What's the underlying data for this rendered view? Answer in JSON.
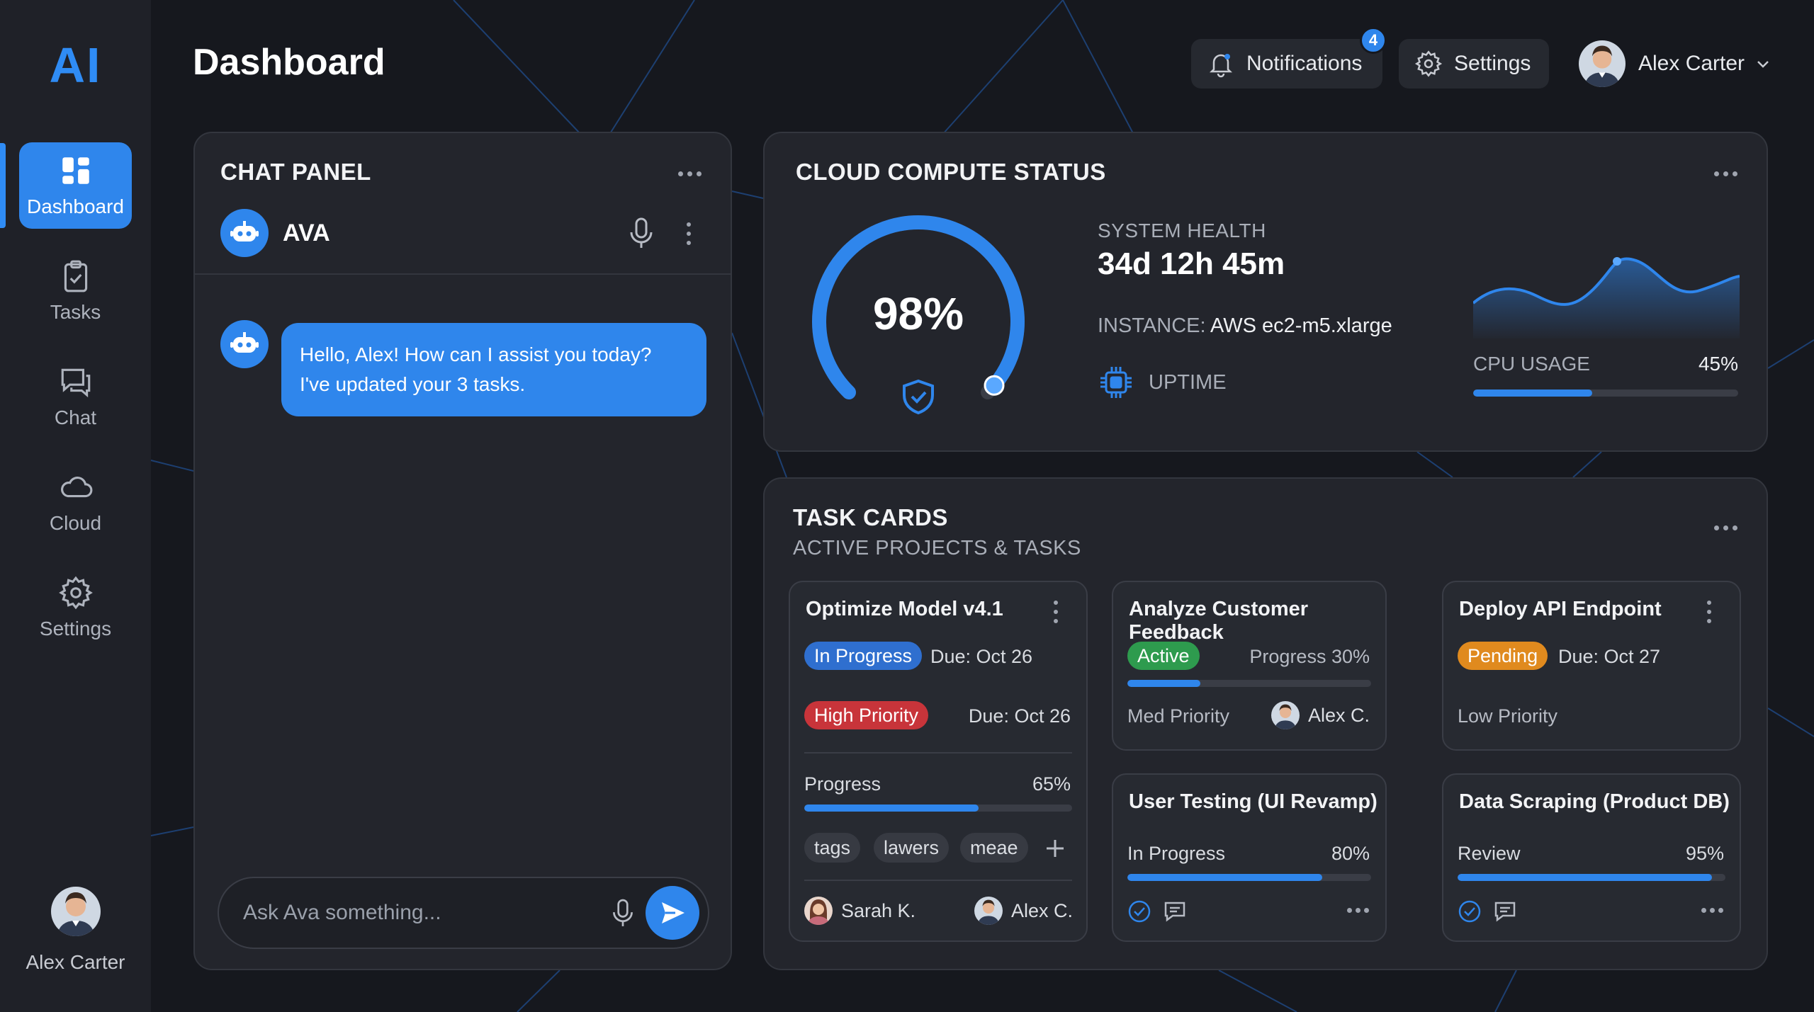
{
  "app": {
    "logo": "AI",
    "page_title": "Dashboard"
  },
  "sidebar": {
    "items": [
      {
        "label": "Dashboard",
        "icon": "dashboard-icon",
        "active": true
      },
      {
        "label": "Tasks",
        "icon": "clipboard-check-icon"
      },
      {
        "label": "Chat",
        "icon": "chat-icon"
      },
      {
        "label": "Cloud",
        "icon": "cloud-icon"
      },
      {
        "label": "Settings",
        "icon": "gear-icon"
      }
    ],
    "user_name": "Alex Carter"
  },
  "header": {
    "notifications_label": "Notifications",
    "notifications_count": "4",
    "settings_label": "Settings",
    "user_name": "Alex Carter"
  },
  "chat": {
    "title": "CHAT PANEL",
    "assistant_name": "AVA",
    "messages": [
      {
        "from": "assistant",
        "lines": [
          "Hello, Alex! How can I assist you today?",
          "I've updated your 3 tasks."
        ]
      }
    ],
    "input_placeholder": "Ask Ava something..."
  },
  "cloud": {
    "title": "CLOUD COMPUTE STATUS",
    "gauge_value": "98%",
    "gauge_fraction": 0.98,
    "system_health_label": "SYSTEM HEALTH",
    "system_health_value": "34d 12h 45m",
    "instance_label": "INSTANCE:",
    "instance_value": "AWS ec2-m5.xlarge",
    "uptime_label": "UPTIME",
    "cpu_label": "CPU USAGE",
    "cpu_value": "45%",
    "cpu_fraction": 0.45
  },
  "tasks": {
    "title": "TASK CARDS",
    "subtitle": "ACTIVE PROJECTS & TASKS",
    "cards": [
      {
        "title": "Optimize Model v4.1",
        "status": "In Progress",
        "due": "Due: Oct 26",
        "priority": "High Priority",
        "priority_due": "Due: Oct 26",
        "progress_label": "Progress",
        "progress_value": "65%",
        "progress_fraction": 0.65,
        "tags": [
          "tags",
          "lawers",
          "meae"
        ],
        "assignees": [
          "Sarah K.",
          "Alex C."
        ]
      },
      {
        "title": "Analyze Customer Feedback",
        "status": "Active",
        "progress_text": "Progress 30%",
        "progress_fraction": 0.3,
        "priority": "Med Priority",
        "assignee": "Alex C."
      },
      {
        "title": "Deploy API Endpoint",
        "status": "Pending",
        "due": "Due: Oct 27",
        "priority": "Low Priority"
      },
      {
        "title": "User Testing (UI Revamp)",
        "status_text": "In Progress",
        "progress_value": "80%",
        "progress_fraction": 0.8
      },
      {
        "title": "Data Scraping (Product DB)",
        "status_text": "Review",
        "progress_value": "95%",
        "progress_fraction": 0.95
      }
    ]
  },
  "colors": {
    "accent": "#2f86ec",
    "bg": "#16181e",
    "panel": "#23252c",
    "danger": "#c8343a",
    "success": "#2e9b4e",
    "warning": "#e08a1e"
  }
}
